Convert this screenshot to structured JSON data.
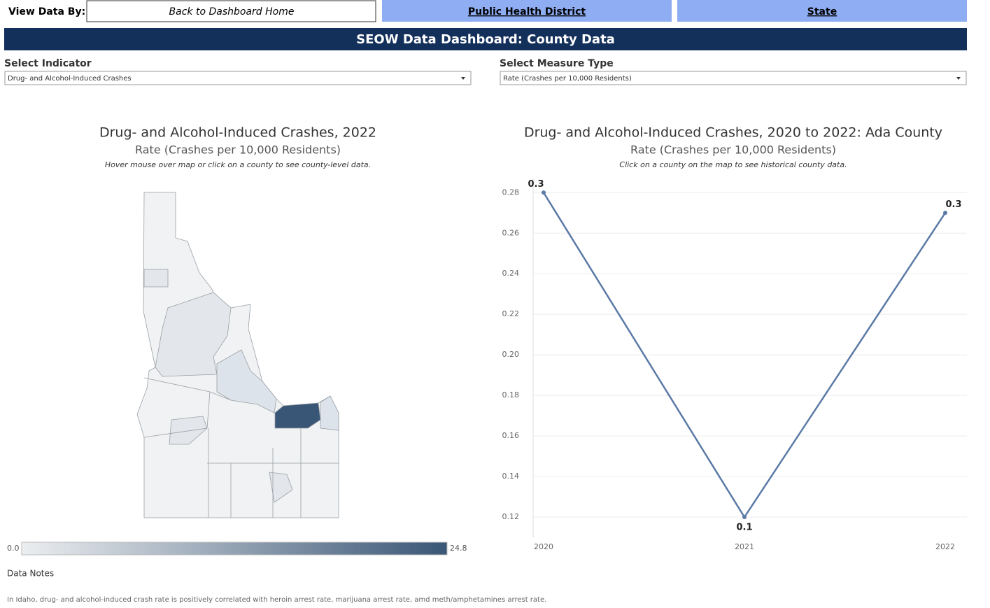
{
  "nav": {
    "label": "View Data By:",
    "buttons": [
      "Back to Dashboard Home",
      "Public Health District",
      "State"
    ]
  },
  "header": {
    "title": "SEOW Data Dashboard: County Data"
  },
  "filters": [
    {
      "label": "Select Indicator",
      "value": "Drug- and Alcohol-Induced Crashes"
    },
    {
      "label": "Select Measure Type",
      "value": "Rate (Crashes per 10,000 Residents)"
    }
  ],
  "map": {
    "title": "Drug- and Alcohol-Induced Crashes, 2022",
    "subtitle": "Rate (Crashes per 10,000 Residents)",
    "note": "Hover mouse over map or click on a county to see county-level data.",
    "legend": {
      "min": {
        "value": 0,
        "label": "0.0"
      },
      "max": 24.8,
      "colors": [
        "#eceef0",
        "#3a5676"
      ]
    }
  },
  "chart_data": {
    "type": "line",
    "title": "Drug- and Alcohol-Induced Crashes, 2020 to 2022: Ada County",
    "subtitle": "Rate (Crashes per 10,000 Residents)",
    "note": "Click on a county on the map to see historical county data.",
    "categories": [
      "2020",
      "2021",
      "2022"
    ],
    "values": [
      0.28,
      0.12,
      0.27
    ],
    "value_labels": [
      "0.3",
      "0.1",
      "0.3"
    ],
    "color": "#5b7aa6",
    "ylim": [
      0.11,
      0.287
    ],
    "yticks": [
      0.12,
      0.14,
      0.16,
      0.18,
      {
        "value": 0.2,
        "label": "0.20"
      },
      0.22,
      0.24,
      0.26,
      0.28
    ],
    "grid": true
  },
  "notes": {
    "heading": "Data Notes",
    "text": "In Idaho, drug- and alcohol-induced crash rate is positively correlated with heroin arrest rate, marijuana arrest rate, amd meth/amphetamines arrest rate."
  }
}
